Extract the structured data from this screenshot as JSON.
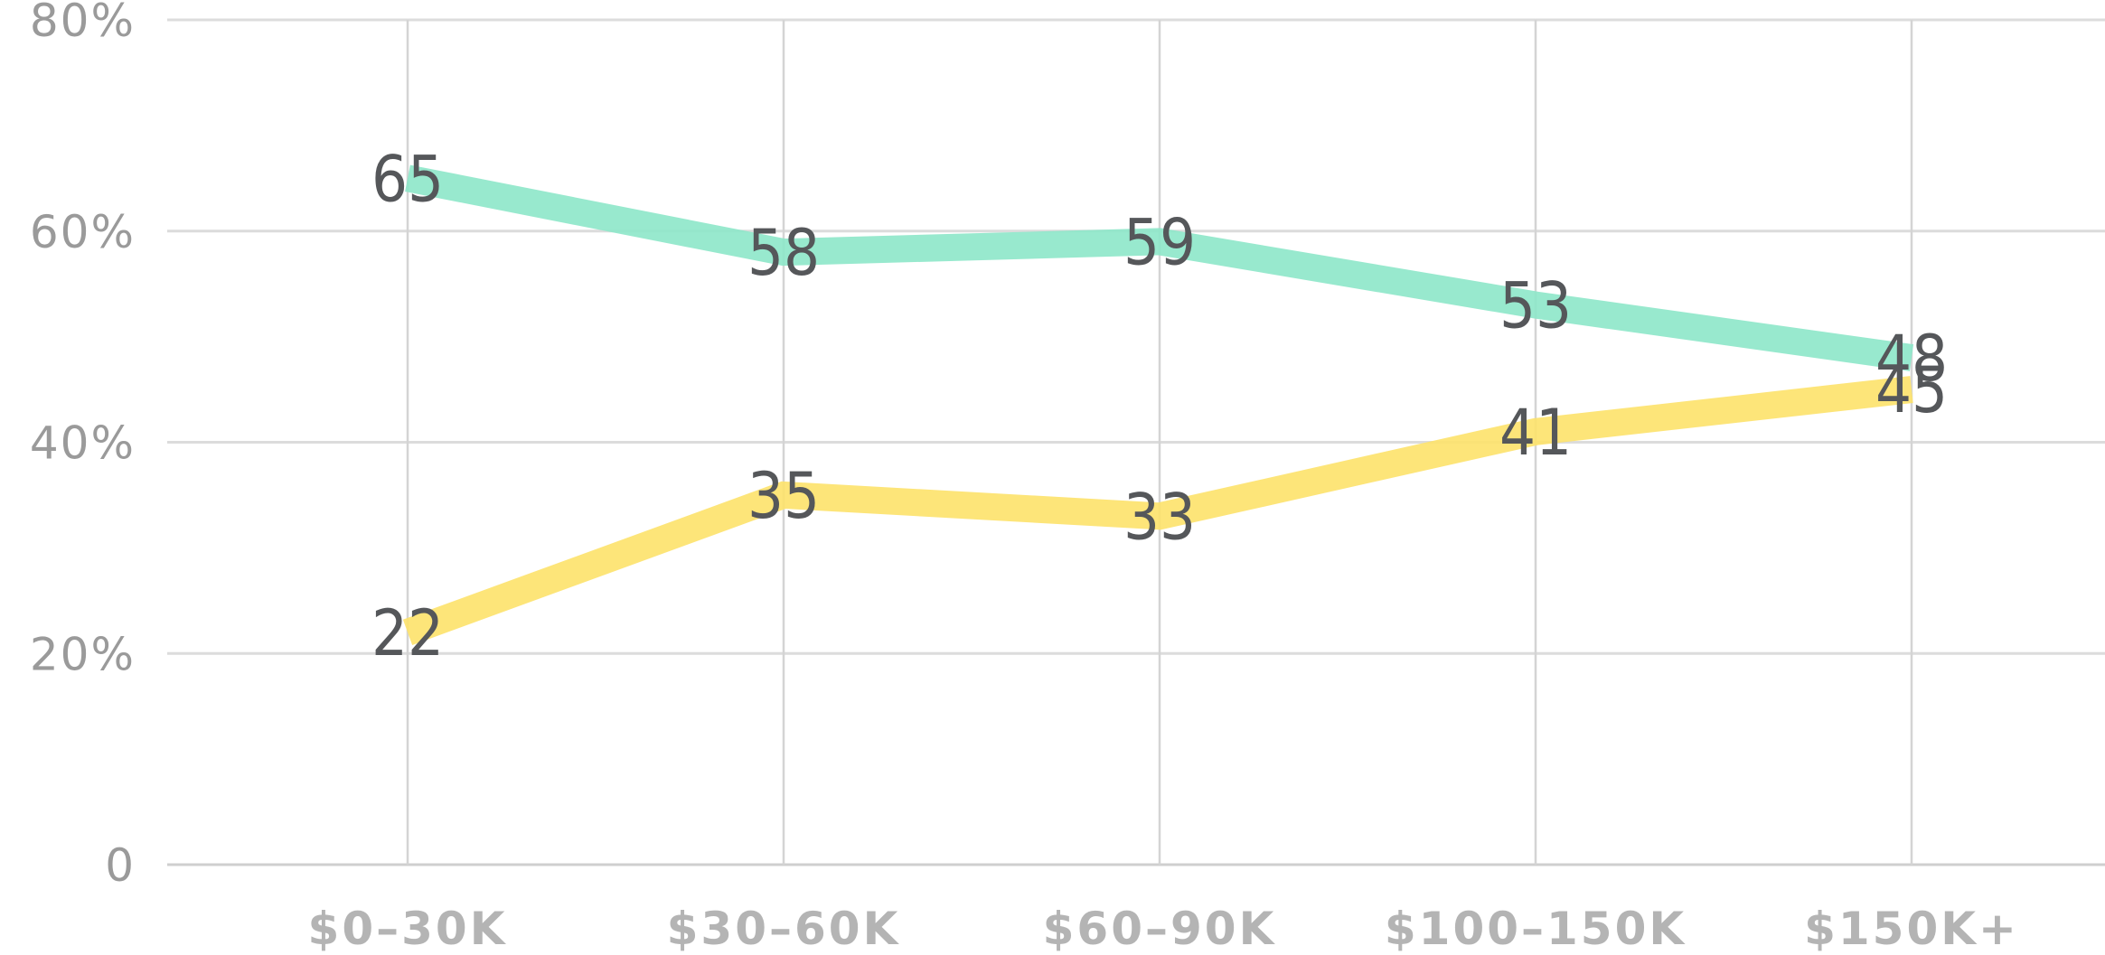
{
  "chart_data": {
    "type": "line",
    "categories": [
      "$0–30K",
      "$30–60K",
      "$60–90K",
      "$100–150K",
      "$150K+"
    ],
    "series": [
      {
        "values": [
          65,
          58,
          59,
          53,
          48
        ],
        "color": "#8de7c9"
      },
      {
        "values": [
          22,
          35,
          33,
          41,
          45
        ],
        "color": "#fde26a"
      }
    ],
    "data_labels": {
      "series_0": [
        "65",
        "58",
        "59",
        "53",
        "48"
      ],
      "series_1": [
        "22",
        "35",
        "33",
        "41",
        "45"
      ]
    },
    "yticks": [
      {
        "value": 0,
        "label": "0"
      },
      {
        "value": 20,
        "label": "20%"
      },
      {
        "value": 40,
        "label": "40%"
      },
      {
        "value": 60,
        "label": "60%"
      },
      {
        "value": 80,
        "label": "80%"
      }
    ],
    "ylim": [
      0,
      80
    ],
    "grid": true,
    "legend": "none",
    "colors": {
      "gridline": "#dcdcdc",
      "y_tick_text": "#9a9a9a",
      "x_tick_text": "#b4b4b4",
      "data_label_text": "#55575a"
    }
  }
}
